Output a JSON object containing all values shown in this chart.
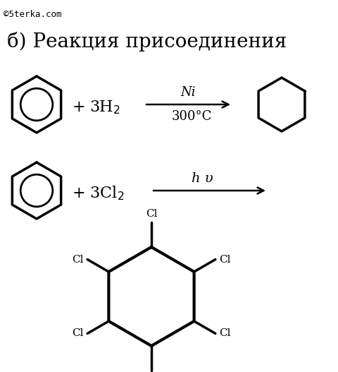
{
  "watermark": "©5terka.com",
  "title": "б) Реакция присоединения",
  "r1_text": "+ 3H",
  "r1_cond_top": "Ni",
  "r1_cond_bot": "300°C",
  "r2_text": "+ 3Cl",
  "r2_cond": "h υ",
  "bg_color": "#ffffff",
  "line_color": "#000000",
  "fs_watermark": 9,
  "fs_title": 20,
  "fs_reaction": 15,
  "fs_cond": 12,
  "fs_cl": 11
}
